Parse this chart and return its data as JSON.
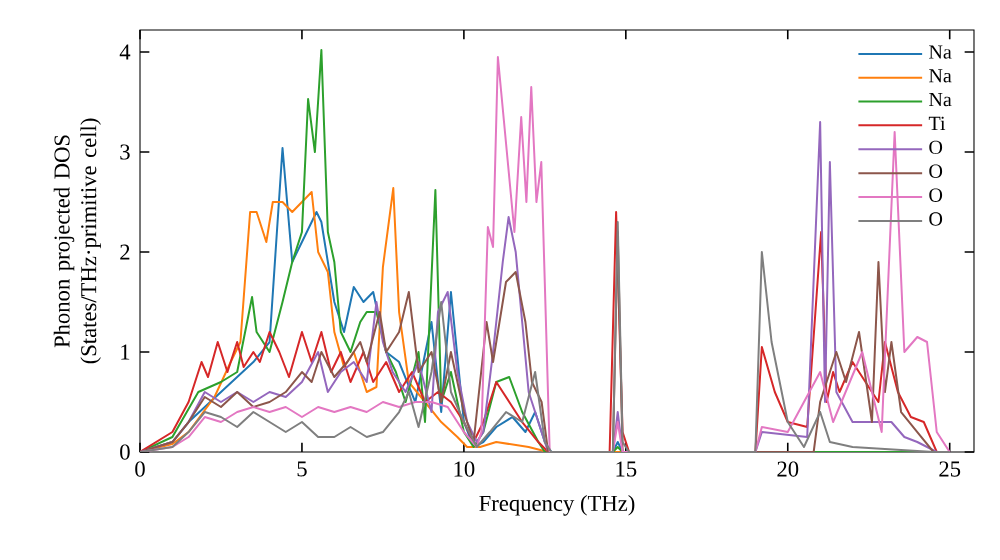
{
  "chart_data": {
    "type": "line",
    "xlabel": "Frequency (THz)",
    "ylabel": "Phonon projected DOS (States/THz·primitive cell)",
    "xlim": [
      0,
      25.75
    ],
    "ylim": [
      0,
      4.22
    ],
    "xticks": [
      0,
      5,
      10,
      15,
      20,
      25
    ],
    "yticks": [
      0,
      1,
      2,
      3,
      4
    ],
    "legend": "top right",
    "grid": false,
    "marker": "none",
    "line_style": "solid",
    "series": [
      {
        "name": "Na",
        "color": "#1f77b4",
        "x": [
          0,
          1.0,
          1.5,
          2.0,
          2.5,
          3.0,
          3.5,
          4.0,
          4.4,
          4.7,
          5.0,
          5.45,
          5.6,
          6.0,
          6.3,
          6.6,
          6.9,
          7.2,
          7.6,
          8.0,
          8.5,
          9.0,
          9.3,
          9.6,
          10.0,
          10.3,
          10.6,
          11.0,
          11.5,
          11.9,
          12.2,
          12.5,
          12.7,
          14.6,
          14.75,
          14.9,
          25
        ],
        "values": [
          0,
          0.1,
          0.3,
          0.45,
          0.6,
          0.75,
          0.9,
          1.1,
          3.04,
          1.9,
          2.1,
          2.4,
          2.3,
          1.5,
          1.2,
          1.65,
          1.5,
          1.6,
          1.0,
          0.9,
          0.5,
          1.3,
          0.4,
          1.6,
          0.3,
          0.05,
          0.1,
          0.25,
          0.35,
          0.2,
          0.4,
          0.1,
          0,
          0,
          0.1,
          0,
          0
        ]
      },
      {
        "name": "Na",
        "color": "#ff7f0e",
        "x": [
          0,
          1.0,
          1.5,
          2.3,
          2.8,
          3.1,
          3.4,
          3.6,
          3.9,
          4.1,
          4.4,
          4.7,
          5.0,
          5.3,
          5.5,
          5.8,
          6.0,
          6.3,
          6.6,
          7.0,
          7.3,
          7.5,
          7.82,
          8.0,
          8.3,
          8.8,
          9.3,
          9.8,
          10.1,
          10.5,
          11.0,
          12.0,
          12.6,
          25
        ],
        "values": [
          0,
          0.08,
          0.2,
          0.55,
          0.9,
          1.1,
          2.4,
          2.4,
          2.1,
          2.5,
          2.5,
          2.4,
          2.5,
          2.6,
          2.0,
          1.8,
          1.2,
          0.85,
          1.0,
          0.6,
          0.65,
          1.85,
          2.64,
          1.4,
          0.7,
          0.5,
          0.3,
          0.15,
          0.05,
          0.05,
          0.1,
          0.05,
          0,
          0
        ]
      },
      {
        "name": "Na",
        "color": "#2ca02c",
        "x": [
          0,
          1.0,
          1.8,
          2.5,
          3.0,
          3.46,
          3.6,
          4.0,
          4.4,
          4.7,
          5.0,
          5.19,
          5.4,
          5.6,
          5.8,
          6.0,
          6.2,
          6.5,
          6.8,
          7.0,
          7.3,
          7.6,
          7.9,
          8.2,
          8.6,
          8.8,
          9.12,
          9.3,
          9.6,
          10.0,
          10.3,
          10.6,
          11.0,
          11.4,
          11.8,
          12.3,
          12.5,
          14.6,
          14.75,
          14.9,
          25
        ],
        "values": [
          0,
          0.15,
          0.6,
          0.7,
          0.8,
          1.55,
          1.2,
          1.0,
          1.5,
          1.9,
          2.2,
          3.53,
          3.0,
          4.02,
          2.2,
          1.9,
          1.2,
          1.0,
          1.3,
          1.4,
          1.4,
          1.0,
          0.8,
          0.5,
          1.0,
          0.3,
          2.62,
          0.5,
          0.8,
          0.2,
          0.05,
          0.2,
          0.7,
          0.75,
          0.4,
          0.1,
          0,
          0,
          0.05,
          0,
          0
        ]
      },
      {
        "name": "Ti",
        "color": "#d62728",
        "x": [
          0,
          1.0,
          1.5,
          1.9,
          2.1,
          2.4,
          2.7,
          3.0,
          3.2,
          3.5,
          3.7,
          4.0,
          4.3,
          4.6,
          5.0,
          5.3,
          5.6,
          5.9,
          6.2,
          6.5,
          6.9,
          7.2,
          7.6,
          8.0,
          8.4,
          8.8,
          9.2,
          9.6,
          10.0,
          10.3,
          10.6,
          11.0,
          11.4,
          11.8,
          12.3,
          12.6,
          14.5,
          14.7,
          14.9,
          15.1,
          19.0,
          19.2,
          19.6,
          20.0,
          20.6,
          21.03,
          21.2,
          21.4,
          21.6,
          22.0,
          22.4,
          22.8,
          23.0,
          23.4,
          23.8,
          24.2,
          24.6,
          25
        ],
        "values": [
          0,
          0.2,
          0.5,
          0.9,
          0.75,
          1.1,
          0.8,
          1.1,
          0.85,
          1.0,
          0.9,
          1.2,
          1.0,
          0.75,
          1.2,
          0.9,
          1.2,
          0.8,
          1.0,
          0.7,
          1.0,
          0.7,
          0.9,
          0.6,
          0.8,
          0.5,
          0.6,
          0.5,
          0.3,
          0.1,
          0.3,
          0.7,
          0.5,
          0.3,
          0.1,
          0,
          0,
          2.4,
          0.2,
          0,
          0,
          1.05,
          0.6,
          0.3,
          0.25,
          2.2,
          0.5,
          0.8,
          0.6,
          0.9,
          0.7,
          0.5,
          1.1,
          0.6,
          0.35,
          0.3,
          0,
          0
        ]
      },
      {
        "name": "O",
        "color": "#9467bd",
        "x": [
          0,
          1.0,
          1.5,
          2.0,
          2.5,
          3.0,
          3.5,
          4.0,
          4.5,
          5.0,
          5.5,
          5.8,
          6.2,
          6.6,
          7.0,
          7.3,
          7.5,
          7.8,
          8.2,
          8.6,
          9.0,
          9.2,
          9.5,
          9.8,
          10.1,
          10.4,
          10.6,
          10.9,
          11.2,
          11.38,
          11.6,
          12.0,
          12.4,
          12.6,
          14.6,
          14.75,
          14.9,
          19.0,
          19.2,
          20.6,
          21.0,
          21.15,
          21.3,
          21.5,
          22.0,
          22.6,
          23.2,
          23.6,
          24.0,
          24.6,
          25
        ],
        "values": [
          0,
          0.1,
          0.3,
          0.6,
          0.5,
          0.6,
          0.5,
          0.6,
          0.55,
          0.7,
          1.0,
          0.6,
          0.8,
          0.9,
          0.7,
          1.5,
          1.1,
          0.8,
          0.6,
          0.9,
          0.4,
          1.4,
          1.6,
          0.8,
          0.3,
          0.1,
          0.2,
          1.0,
          1.9,
          2.35,
          2.0,
          0.6,
          0.2,
          0,
          0,
          0.4,
          0,
          0,
          0.2,
          0.15,
          3.3,
          0.5,
          2.9,
          0.6,
          0.3,
          0.3,
          0.3,
          0.15,
          0.1,
          0,
          0
        ]
      },
      {
        "name": "O",
        "color": "#8c564b",
        "x": [
          0,
          1.0,
          1.5,
          2.0,
          2.5,
          3.0,
          3.5,
          4.0,
          4.5,
          5.0,
          5.3,
          5.6,
          6.0,
          6.4,
          6.8,
          7.0,
          7.4,
          7.6,
          8.0,
          8.3,
          8.6,
          9.0,
          9.3,
          9.6,
          10.0,
          10.3,
          10.7,
          10.9,
          11.3,
          11.6,
          11.9,
          12.1,
          12.4,
          12.6,
          14.6,
          14.75,
          14.9,
          20.8,
          21.0,
          21.5,
          21.8,
          22.2,
          22.6,
          22.8,
          23.0,
          23.2,
          23.5,
          24.0,
          24.5,
          25
        ],
        "values": [
          0,
          0.1,
          0.3,
          0.55,
          0.45,
          0.6,
          0.45,
          0.5,
          0.6,
          0.8,
          0.7,
          1.0,
          0.75,
          0.9,
          1.1,
          0.9,
          1.4,
          1.0,
          1.2,
          1.6,
          0.8,
          1.0,
          0.5,
          1.0,
          0.4,
          0.1,
          1.3,
          0.9,
          1.7,
          1.8,
          1.3,
          0.7,
          0.5,
          0,
          0,
          2.2,
          0,
          0,
          0.5,
          1.0,
          0.7,
          1.2,
          0.3,
          1.9,
          0.6,
          1.1,
          0.4,
          0.2,
          0,
          0
        ]
      },
      {
        "name": "O",
        "color": "#e377c2",
        "x": [
          0,
          1.0,
          1.5,
          2.0,
          2.5,
          3.0,
          3.5,
          4.0,
          4.5,
          5.0,
          5.5,
          6.0,
          6.5,
          7.0,
          7.5,
          8.0,
          8.5,
          9.0,
          9.5,
          10.0,
          10.4,
          10.54,
          10.74,
          10.9,
          11.05,
          11.56,
          11.77,
          11.93,
          12.08,
          12.24,
          12.39,
          12.65,
          14.6,
          14.75,
          14.9,
          19.0,
          19.2,
          20.0,
          21.0,
          21.4,
          22.3,
          22.9,
          23.3,
          23.6,
          24.0,
          24.3,
          24.6,
          25
        ],
        "values": [
          0,
          0.05,
          0.15,
          0.35,
          0.3,
          0.4,
          0.45,
          0.4,
          0.45,
          0.35,
          0.45,
          0.4,
          0.45,
          0.4,
          0.5,
          0.45,
          0.5,
          0.5,
          0.45,
          0.2,
          0.05,
          0.2,
          2.25,
          2.05,
          3.95,
          2.2,
          3.35,
          2.5,
          3.65,
          2.5,
          2.9,
          0,
          0,
          0.3,
          0,
          0,
          0.25,
          0.2,
          0.8,
          0.3,
          1.0,
          0.2,
          3.2,
          1.0,
          1.15,
          1.1,
          0.2,
          0
        ]
      },
      {
        "name": "O",
        "color": "#7f7f7f",
        "x": [
          0,
          1.0,
          1.5,
          2.0,
          2.5,
          3.0,
          3.5,
          4.0,
          4.5,
          5.0,
          5.5,
          6.0,
          6.5,
          7.0,
          7.5,
          8.0,
          8.3,
          8.6,
          9.0,
          9.3,
          9.6,
          10.0,
          10.4,
          10.8,
          11.3,
          11.8,
          12.2,
          12.5,
          12.7,
          14.6,
          14.75,
          14.9,
          15.1,
          19.0,
          19.2,
          19.5,
          20.0,
          20.5,
          21.0,
          21.3,
          22.0,
          24.5,
          25
        ],
        "values": [
          0,
          0.05,
          0.2,
          0.4,
          0.35,
          0.25,
          0.4,
          0.3,
          0.2,
          0.3,
          0.15,
          0.15,
          0.25,
          0.15,
          0.2,
          0.4,
          0.6,
          0.25,
          0.8,
          1.5,
          0.6,
          0.3,
          0.05,
          0.2,
          0.4,
          0.3,
          0.8,
          0.1,
          0,
          0,
          2.3,
          0.1,
          0,
          0,
          2.0,
          1.1,
          0.3,
          0.05,
          0.4,
          0.1,
          0.05,
          0,
          0
        ]
      }
    ]
  }
}
